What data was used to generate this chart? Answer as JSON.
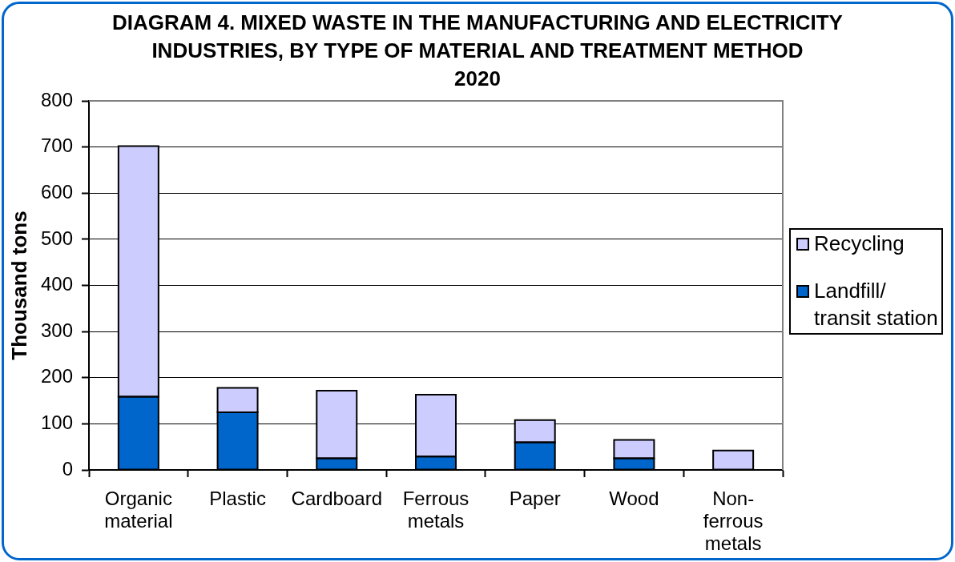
{
  "chart_data": {
    "type": "bar",
    "title": "DIAGRAM 4. MIXED WASTE IN THE MANUFACTURING AND ELECTRICITY INDUSTRIES, BY TYPE OF MATERIAL AND TREATMENT METHOD",
    "subtitle": "2020",
    "ylabel": "Thousand tons",
    "categories": [
      "Organic material",
      "Plastic",
      "Cardboard",
      "Ferrous metals",
      "Paper",
      "Wood",
      "Non-ferrous metals"
    ],
    "stacked": true,
    "series": [
      {
        "name": "Landfill/transit station",
        "color": "#0066cc",
        "values": [
          159,
          125,
          25,
          29,
          60,
          25,
          null
        ]
      },
      {
        "name": "Recycling",
        "color": "#ccccff",
        "values": [
          543,
          53,
          147,
          134,
          48,
          40,
          42
        ]
      }
    ],
    "ylim": [
      0,
      800
    ],
    "yticks": [
      0,
      100,
      200,
      300,
      400,
      500,
      600,
      700,
      800
    ],
    "grid": "y",
    "legend": "right"
  }
}
